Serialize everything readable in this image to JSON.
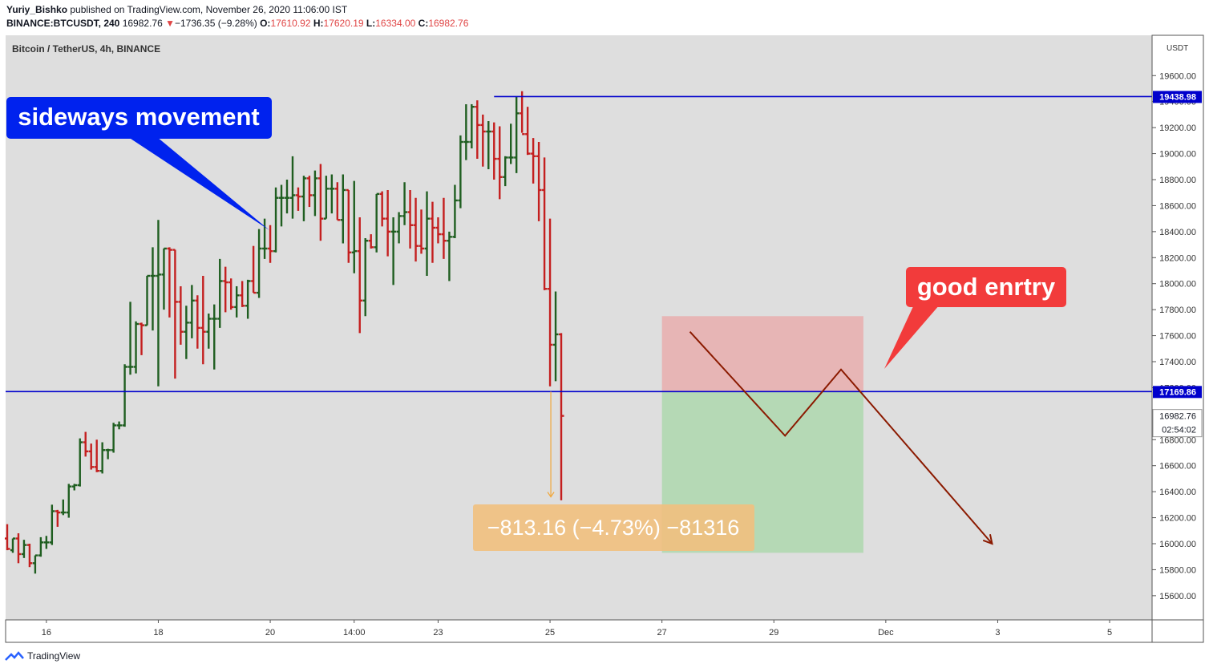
{
  "header": {
    "author": "Yuriy_Bishko",
    "published_text": "published on TradingView.com, November 26, 2020 11:06:00 IST",
    "symbol": "BINANCE:BTCUSDT, 240",
    "last": "16982.76",
    "change": "−1736.35 (−9.28%)",
    "o_label": "O:",
    "o_value": "17610.92",
    "h_label": "H:",
    "h_value": "17620.19",
    "l_label": "L:",
    "l_value": "16334.00",
    "c_label": "C:",
    "c_value": "16982.76"
  },
  "footer": {
    "brand": "TradingView"
  },
  "colors": {
    "up": "#1f5e20",
    "down": "#c41f1f",
    "hline": "#0000cc",
    "callout_blue": "#0022ee",
    "callout_red": "#f23b3b",
    "path": "#8b1a00",
    "measure": "#f0c080",
    "stop_zone": "#e8b0b0",
    "target_zone": "#b0d8b0",
    "plot_bg": "#dedede"
  },
  "chart_data": {
    "type": "ohlc",
    "title": "Bitcoin / TetherUS, 4h, BINANCE",
    "y_unit": "USDT",
    "ylim": [
      15400,
      19900
    ],
    "y_ticks": [
      15600,
      15800,
      16000,
      16200,
      16400,
      16600,
      16800,
      17000,
      17200,
      17400,
      17600,
      17800,
      18000,
      18200,
      18400,
      18600,
      18800,
      19000,
      19200,
      19400,
      19600
    ],
    "y_tick_labels": [
      "15600.00",
      "15800.00",
      "16000.00",
      "16200.00",
      "16400.00",
      "16600.00",
      "16800.00",
      "17000.00",
      "17200.00",
      "17400.00",
      "17600.00",
      "17800.00",
      "18000.00",
      "18200.00",
      "18400.00",
      "18600.00",
      "18800.00",
      "19000.00",
      "19200.00",
      "19400.00",
      "19600.00"
    ],
    "x_ticks": [
      {
        "label": "16",
        "bar": 7
      },
      {
        "label": "18",
        "bar": 27
      },
      {
        "label": "20",
        "bar": 47
      },
      {
        "label": "14:00",
        "bar": 62
      },
      {
        "label": "23",
        "bar": 77
      },
      {
        "label": "25",
        "bar": 97
      },
      {
        "label": "27",
        "bar": 117
      },
      {
        "label": "29",
        "bar": 137
      },
      {
        "label": "Dec",
        "bar": 157
      },
      {
        "label": "3",
        "bar": 177
      },
      {
        "label": "5",
        "bar": 197
      }
    ],
    "bars_ohlc": [
      [
        16040,
        16150,
        15950,
        15960
      ],
      [
        15950,
        16040,
        15930,
        16040
      ],
      [
        16040,
        16080,
        15850,
        15920
      ],
      [
        15920,
        16030,
        15890,
        15990
      ],
      [
        15990,
        16000,
        15820,
        15850
      ],
      [
        15850,
        15910,
        15770,
        15910
      ],
      [
        15910,
        16050,
        15900,
        16010
      ],
      [
        16010,
        16060,
        15960,
        16010
      ],
      [
        16010,
        16300,
        15990,
        16250
      ],
      [
        16250,
        16260,
        16130,
        16240
      ],
      [
        16240,
        16340,
        16220,
        16240
      ],
      [
        16240,
        16460,
        16200,
        16440
      ],
      [
        16440,
        16460,
        16410,
        16450
      ],
      [
        16450,
        16810,
        16440,
        16780
      ],
      [
        16780,
        16860,
        16670,
        16710
      ],
      [
        16710,
        16770,
        16570,
        16590
      ],
      [
        16590,
        16800,
        16550,
        16560
      ],
      [
        16560,
        16780,
        16540,
        16720
      ],
      [
        16720,
        16730,
        16650,
        16720
      ],
      [
        16720,
        16930,
        16700,
        16910
      ],
      [
        16910,
        16940,
        16880,
        16910
      ],
      [
        16910,
        17380,
        16900,
        17360
      ],
      [
        17360,
        17860,
        17300,
        17360
      ],
      [
        17360,
        17710,
        17310,
        17690
      ],
      [
        17690,
        17700,
        17450,
        17680
      ],
      [
        17680,
        18060,
        17680,
        18060
      ],
      [
        18060,
        18280,
        17640,
        18060
      ],
      [
        18060,
        18490,
        17210,
        18070
      ],
      [
        18070,
        18270,
        17800,
        18270
      ],
      [
        18270,
        18280,
        17740,
        18260
      ],
      [
        18260,
        18260,
        17270,
        17860
      ],
      [
        17860,
        17980,
        17530,
        17630
      ],
      [
        17630,
        17830,
        17420,
        17700
      ],
      [
        17700,
        17990,
        17580,
        17870
      ],
      [
        17870,
        17910,
        17500,
        17660
      ],
      [
        17660,
        18060,
        17380,
        17630
      ],
      [
        17630,
        17770,
        17500,
        17730
      ],
      [
        17730,
        17840,
        17340,
        17730
      ],
      [
        17730,
        18190,
        17660,
        18020
      ],
      [
        18020,
        18130,
        17780,
        18010
      ],
      [
        18010,
        18040,
        17800,
        17820
      ],
      [
        17820,
        17980,
        17740,
        17910
      ],
      [
        17910,
        18020,
        17820,
        17830
      ],
      [
        17830,
        18030,
        17730,
        18020
      ],
      [
        18020,
        18290,
        17930,
        17930
      ],
      [
        17930,
        18420,
        17890,
        18270
      ],
      [
        18270,
        18500,
        18190,
        18270
      ],
      [
        18270,
        18450,
        18160,
        18250
      ],
      [
        18250,
        18740,
        18240,
        18660
      ],
      [
        18660,
        18760,
        18440,
        18660
      ],
      [
        18660,
        18800,
        18540,
        18660
      ],
      [
        18660,
        18980,
        18500,
        18680
      ],
      [
        18680,
        18740,
        18560,
        18670
      ],
      [
        18670,
        18830,
        18480,
        18810
      ],
      [
        18810,
        18830,
        18590,
        18680
      ],
      [
        18680,
        18870,
        18520,
        18810
      ],
      [
        18810,
        18920,
        18330,
        18500
      ],
      [
        18500,
        18830,
        18500,
        18730
      ],
      [
        18730,
        18840,
        18540,
        18730
      ],
      [
        18730,
        18780,
        18490,
        18490
      ],
      [
        18490,
        18840,
        18310,
        18720
      ],
      [
        18720,
        18720,
        18160,
        18240
      ],
      [
        18240,
        18790,
        18080,
        18250
      ],
      [
        18250,
        18510,
        17620,
        17870
      ],
      [
        17870,
        18350,
        17750,
        18330
      ],
      [
        18330,
        18380,
        18270,
        18280
      ],
      [
        18280,
        18690,
        18240,
        18690
      ],
      [
        18690,
        18710,
        18440,
        18500
      ],
      [
        18500,
        18720,
        18210,
        18400
      ],
      [
        18400,
        18510,
        17990,
        18400
      ],
      [
        18400,
        18550,
        18310,
        18520
      ],
      [
        18520,
        18780,
        18450,
        18550
      ],
      [
        18550,
        18720,
        18270,
        18450
      ],
      [
        18450,
        18660,
        18170,
        18290
      ],
      [
        18290,
        18570,
        18230,
        18270
      ],
      [
        18270,
        18710,
        18060,
        18500
      ],
      [
        18500,
        18630,
        18160,
        18430
      ],
      [
        18430,
        18510,
        18310,
        18380
      ],
      [
        18380,
        18660,
        18190,
        18330
      ],
      [
        18330,
        18400,
        18020,
        18360
      ],
      [
        18360,
        18760,
        18350,
        18640
      ],
      [
        18640,
        19140,
        18580,
        19090
      ],
      [
        19090,
        19380,
        18950,
        19090
      ],
      [
        19090,
        19380,
        19040,
        19360
      ],
      [
        19360,
        19410,
        18960,
        19220
      ],
      [
        19220,
        19300,
        18900,
        19170
      ],
      [
        19170,
        19250,
        18880,
        19170
      ],
      [
        19170,
        19240,
        18800,
        18960
      ],
      [
        18960,
        19210,
        18650,
        18820
      ],
      [
        18820,
        18980,
        18750,
        18970
      ],
      [
        18970,
        19230,
        18920,
        18970
      ],
      [
        18970,
        19440,
        18850,
        19310
      ],
      [
        19310,
        19480,
        19160,
        19150
      ],
      [
        19150,
        19360,
        18990,
        19000
      ],
      [
        19000,
        19120,
        18770,
        18980
      ],
      [
        18980,
        19090,
        18480,
        18720
      ],
      [
        18720,
        18970,
        17950,
        17960
      ],
      [
        17960,
        18500,
        17210,
        17530
      ],
      [
        17530,
        17940,
        17250,
        17610
      ],
      [
        17610,
        17620,
        16334,
        16983
      ]
    ],
    "horizontal_lines": [
      {
        "value": 19438.98,
        "label": "19438.98",
        "from_bar": 87
      },
      {
        "value": 17169.86,
        "label": "17169.86",
        "from_bar": 0
      }
    ],
    "last_price": {
      "value": 16982.76,
      "label": "16982.76",
      "countdown": "02:54:02"
    },
    "measure": {
      "from_bar": 97,
      "y_from": 17169.86,
      "y_to": 16360,
      "label": "−813.16 (−4.73%) −81316"
    },
    "position": {
      "from_bar": 117,
      "to_bar": 153,
      "entry": 17169.86,
      "stop": 17750,
      "target": 15930
    },
    "projected_path": [
      {
        "bar": 122,
        "y": 17630
      },
      {
        "bar": 139,
        "y": 16830
      },
      {
        "bar": 149,
        "y": 17340
      },
      {
        "bar": 176,
        "y": 16000
      }
    ],
    "annotations": [
      {
        "text": "sideways movement",
        "color": "#0022ee"
      },
      {
        "text": "good enrtry",
        "color": "#f23b3b"
      }
    ]
  }
}
